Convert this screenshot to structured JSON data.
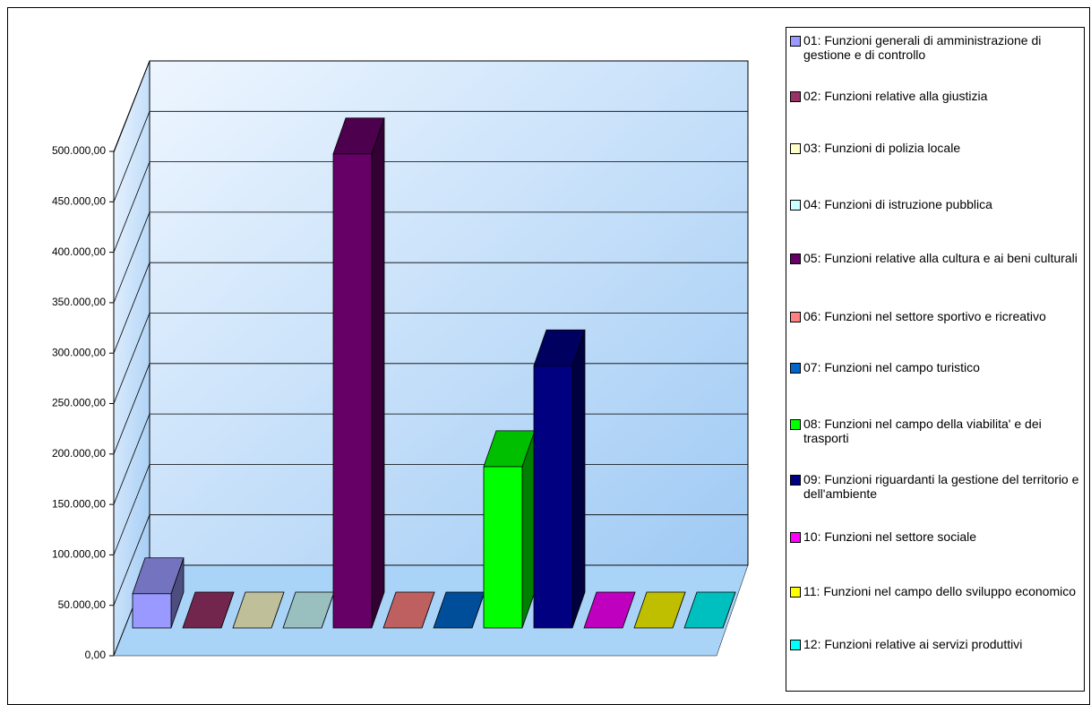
{
  "chart_data": {
    "type": "bar3d",
    "categories": [
      "01: Funzioni generali di amministrazione di gestione e di controllo",
      "02: Funzioni relative alla giustizia",
      "03: Funzioni di polizia locale",
      "04: Funzioni di istruzione pubblica",
      "05: Funzioni relative alla cultura e ai beni culturali",
      "06: Funzioni nel settore sportivo e ricreativo",
      "07: Funzioni nel campo turistico",
      "08: Funzioni nel campo della viabilita' e dei trasporti",
      "09: Funzioni riguardanti la gestione del territorio e dell'ambiente",
      "10: Funzioni nel settore sociale",
      "11: Funzioni nel campo dello sviluppo economico",
      "12: Funzioni relative ai servizi produttivi"
    ],
    "values": [
      34000,
      0,
      0,
      0,
      470000,
      0,
      0,
      160000,
      260000,
      0,
      0,
      0
    ],
    "colors": [
      "#9999ff",
      "#993366",
      "#ffffcc",
      "#ccffff",
      "#660066",
      "#ff8080",
      "#0066cc",
      "#00ff00",
      "#000080",
      "#ff00ff",
      "#ffff00",
      "#00ffff"
    ],
    "ylim": [
      0,
      500000
    ],
    "yticks": [
      {
        "value": 0,
        "label": "0,00"
      },
      {
        "value": 50000,
        "label": "50.000,00"
      },
      {
        "value": 100000,
        "label": "100.000,00"
      },
      {
        "value": 150000,
        "label": "150.000,00"
      },
      {
        "value": 200000,
        "label": "200.000,00"
      },
      {
        "value": 250000,
        "label": "250.000,00"
      },
      {
        "value": 300000,
        "label": "300.000,00"
      },
      {
        "value": 350000,
        "label": "350.000,00"
      },
      {
        "value": 400000,
        "label": "400.000,00"
      },
      {
        "value": 450000,
        "label": "450.000,00"
      },
      {
        "value": 500000,
        "label": "500.000,00"
      }
    ],
    "grid": true,
    "legend": "right"
  }
}
